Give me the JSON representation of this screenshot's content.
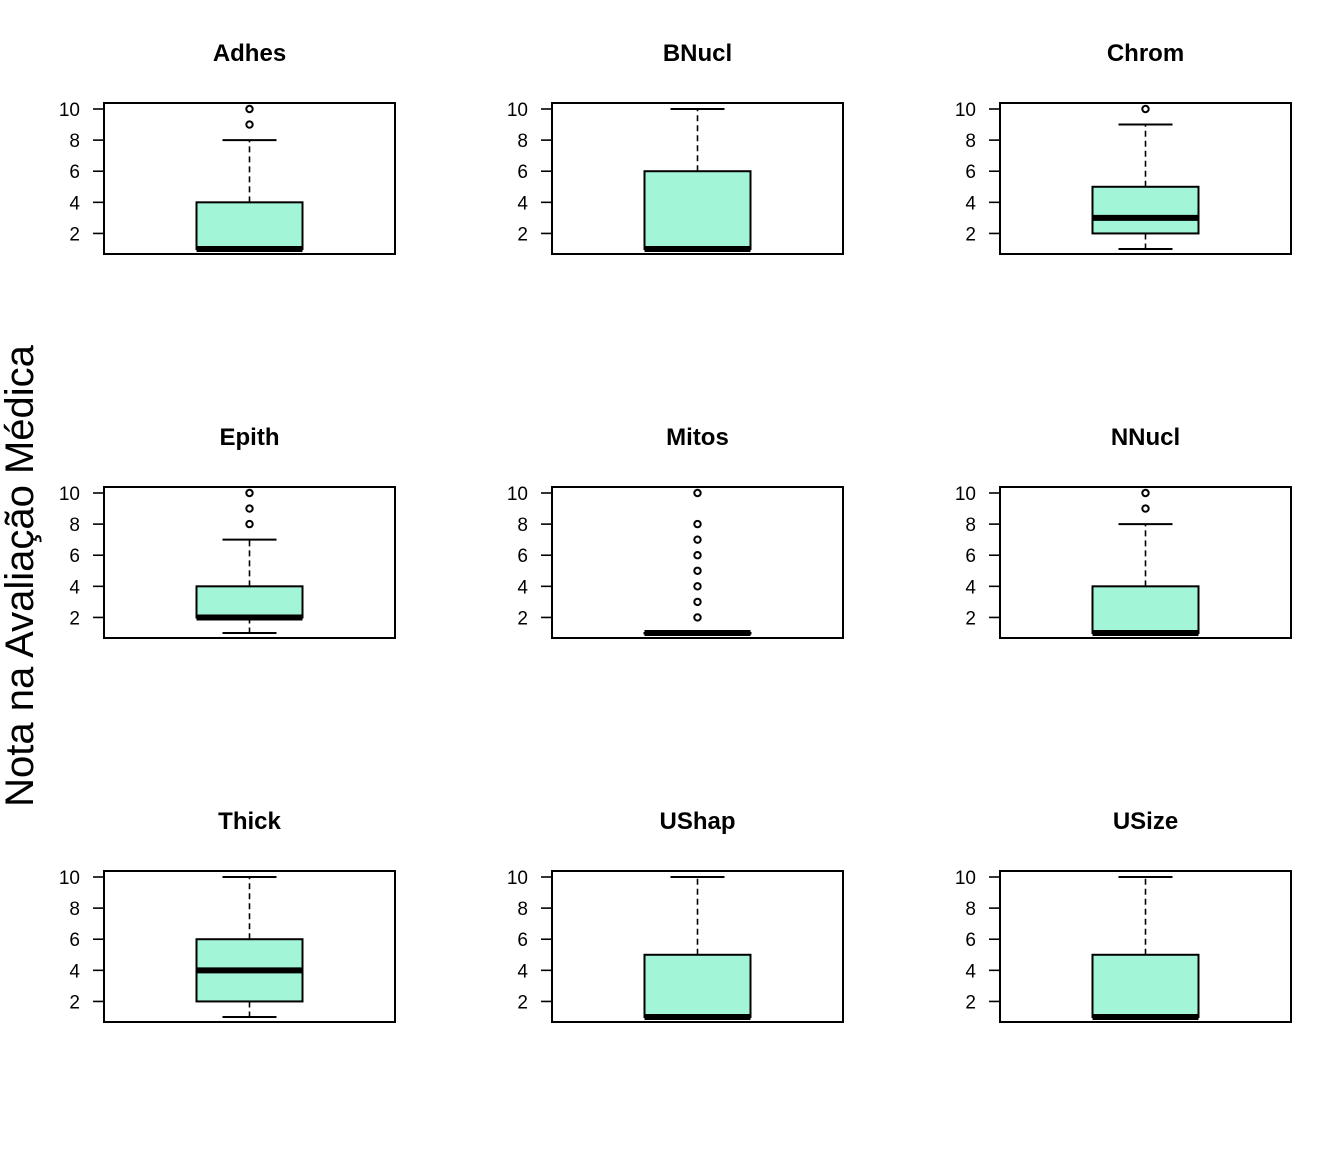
{
  "figure": {
    "ylabel": "Nota na Avaliação Médica",
    "box_fill": "#A2F5D7",
    "stroke": "#000000"
  },
  "chart_data": [
    {
      "type": "box",
      "title": "Adhes",
      "ylim": [
        1,
        10
      ],
      "yticks": [
        2,
        4,
        6,
        8,
        10
      ],
      "box": {
        "whisker_low": 1,
        "q1": 1,
        "median": 1,
        "q3": 4,
        "whisker_high": 8
      },
      "outliers": [
        9,
        10
      ]
    },
    {
      "type": "box",
      "title": "BNucl",
      "ylim": [
        1,
        10
      ],
      "yticks": [
        2,
        4,
        6,
        8,
        10
      ],
      "box": {
        "whisker_low": 1,
        "q1": 1,
        "median": 1,
        "q3": 6,
        "whisker_high": 10
      },
      "outliers": []
    },
    {
      "type": "box",
      "title": "Chrom",
      "ylim": [
        1,
        10
      ],
      "yticks": [
        2,
        4,
        6,
        8,
        10
      ],
      "box": {
        "whisker_low": 1,
        "q1": 2,
        "median": 3,
        "q3": 5,
        "whisker_high": 9
      },
      "outliers": [
        10
      ]
    },
    {
      "type": "box",
      "title": "Epith",
      "ylim": [
        1,
        10
      ],
      "yticks": [
        2,
        4,
        6,
        8,
        10
      ],
      "box": {
        "whisker_low": 1,
        "q1": 2,
        "median": 2,
        "q3": 4,
        "whisker_high": 7
      },
      "outliers": [
        8,
        9,
        10
      ]
    },
    {
      "type": "box",
      "title": "Mitos",
      "ylim": [
        1,
        10
      ],
      "yticks": [
        2,
        4,
        6,
        8,
        10
      ],
      "box": {
        "whisker_low": 1,
        "q1": 1,
        "median": 1,
        "q3": 1,
        "whisker_high": 1
      },
      "outliers": [
        2,
        3,
        4,
        5,
        6,
        7,
        8,
        10
      ]
    },
    {
      "type": "box",
      "title": "NNucl",
      "ylim": [
        1,
        10
      ],
      "yticks": [
        2,
        4,
        6,
        8,
        10
      ],
      "box": {
        "whisker_low": 1,
        "q1": 1,
        "median": 1,
        "q3": 4,
        "whisker_high": 8
      },
      "outliers": [
        9,
        10
      ]
    },
    {
      "type": "box",
      "title": "Thick",
      "ylim": [
        1,
        10
      ],
      "yticks": [
        2,
        4,
        6,
        8,
        10
      ],
      "box": {
        "whisker_low": 1,
        "q1": 2,
        "median": 4,
        "q3": 6,
        "whisker_high": 10
      },
      "outliers": []
    },
    {
      "type": "box",
      "title": "UShap",
      "ylim": [
        1,
        10
      ],
      "yticks": [
        2,
        4,
        6,
        8,
        10
      ],
      "box": {
        "whisker_low": 1,
        "q1": 1,
        "median": 1,
        "q3": 5,
        "whisker_high": 10
      },
      "outliers": []
    },
    {
      "type": "box",
      "title": "USize",
      "ylim": [
        1,
        10
      ],
      "yticks": [
        2,
        4,
        6,
        8,
        10
      ],
      "box": {
        "whisker_low": 1,
        "q1": 1,
        "median": 1,
        "q3": 5,
        "whisker_high": 10
      },
      "outliers": []
    }
  ]
}
